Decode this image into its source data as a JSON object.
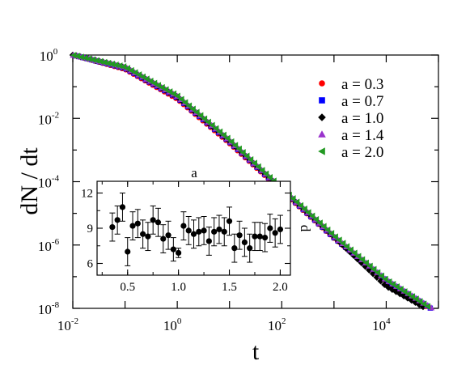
{
  "chart_data": [
    {
      "type": "scatter",
      "xlabel": "t",
      "ylabel": "dN / dt",
      "xscale": "log",
      "yscale": "log",
      "xlim": [
        0.01,
        100000
      ],
      "ylim": [
        1e-08,
        1
      ],
      "x_tick_base": "10",
      "x_tick_exponents": [
        "-2",
        "0",
        "2",
        "4"
      ],
      "x_tick_values": [
        0.01,
        1,
        100,
        10000
      ],
      "y_tick_base": "10",
      "y_tick_exponents": [
        "0",
        "-2",
        "-4",
        "-6",
        "-8"
      ],
      "y_tick_values": [
        1,
        0.01,
        0.0001,
        1e-06,
        1e-08
      ],
      "legend_position": "top-right",
      "series": [
        {
          "name": "a = 0.3",
          "marker": "circle",
          "color": "#ff0000",
          "shift": -0.06,
          "x": [
            0.01,
            0.1,
            1,
            10,
            100,
            1000,
            10000,
            100000
          ],
          "y": [
            1.0,
            0.35,
            0.04,
            0.0016,
            5e-05,
            1.6e-06,
            7e-08,
            6.5e-09
          ]
        },
        {
          "name": "a = 0.7",
          "marker": "square",
          "color": "#0000ff",
          "shift": -0.03,
          "x": [
            0.01,
            0.1,
            1,
            10,
            100,
            1000,
            10000,
            100000
          ],
          "y": [
            1.0,
            0.38,
            0.045,
            0.0018,
            5.5e-05,
            1.7e-06,
            7.5e-08,
            7e-09
          ]
        },
        {
          "name": "a = 1.0",
          "marker": "diamond",
          "color": "#000000",
          "shift": 0,
          "x": [
            0.01,
            0.1,
            1,
            10,
            100,
            1000,
            10000,
            100000
          ],
          "y": [
            1.0,
            0.4,
            0.048,
            0.0019,
            5.8e-05,
            1.8e-06,
            5e-08,
            6e-09
          ]
        },
        {
          "name": "a = 1.4",
          "marker": "triangle-up",
          "color": "#9933cc",
          "shift": 0.03,
          "x": [
            0.01,
            0.1,
            1,
            10,
            100,
            1000,
            10000,
            100000
          ],
          "y": [
            1.0,
            0.41,
            0.05,
            0.002,
            6e-05,
            1.9e-06,
            8e-08,
            7.5e-09
          ]
        },
        {
          "name": "a = 2.0",
          "marker": "triangle-left",
          "color": "#229922",
          "shift": 0.06,
          "x": [
            0.01,
            0.1,
            1,
            10,
            100,
            1000,
            10000,
            100000
          ],
          "y": [
            1.0,
            0.42,
            0.052,
            0.0021,
            6.2e-05,
            2e-06,
            8e-08,
            7e-09
          ]
        }
      ]
    },
    {
      "type": "scatter",
      "title": "a",
      "ylabel": "d",
      "xlim": [
        0.2,
        2.1
      ],
      "ylim": [
        5,
        13
      ],
      "x_ticks": [
        "0.5",
        "1.0",
        "1.5",
        "2.0"
      ],
      "x_tick_values": [
        0.5,
        1.0,
        1.5,
        2.0
      ],
      "y_ticks": [
        "6",
        "9",
        "12"
      ],
      "y_tick_values": [
        6,
        9,
        12
      ],
      "error_bars": true,
      "marker": "circle",
      "color": "#000000",
      "x": [
        0.35,
        0.4,
        0.45,
        0.5,
        0.55,
        0.6,
        0.65,
        0.7,
        0.75,
        0.8,
        0.85,
        0.9,
        0.95,
        1.0,
        1.05,
        1.1,
        1.15,
        1.2,
        1.25,
        1.3,
        1.35,
        1.4,
        1.45,
        1.5,
        1.55,
        1.6,
        1.65,
        1.7,
        1.75,
        1.8,
        1.85,
        1.9,
        1.95,
        2.0
      ],
      "y": [
        9.1,
        9.7,
        10.8,
        7.0,
        9.2,
        9.4,
        8.5,
        8.3,
        9.7,
        9.5,
        8.1,
        8.4,
        7.2,
        6.9,
        9.2,
        8.8,
        8.5,
        8.7,
        8.8,
        7.9,
        8.7,
        8.9,
        8.7,
        9.6,
        7.3,
        8.4,
        7.8,
        7.3,
        8.3,
        8.3,
        8.2,
        9.0,
        8.6,
        8.9
      ],
      "err": [
        1.2,
        1.2,
        1.2,
        1.2,
        1.2,
        1.2,
        1.2,
        1.2,
        1.2,
        1.2,
        1.2,
        1.2,
        1.0,
        0.4,
        1.2,
        1.2,
        1.2,
        1.2,
        1.2,
        1.2,
        1.2,
        1.2,
        1.2,
        1.2,
        1.2,
        1.2,
        1.2,
        1.2,
        1.2,
        1.2,
        1.2,
        1.2,
        1.2,
        1.2
      ]
    }
  ]
}
